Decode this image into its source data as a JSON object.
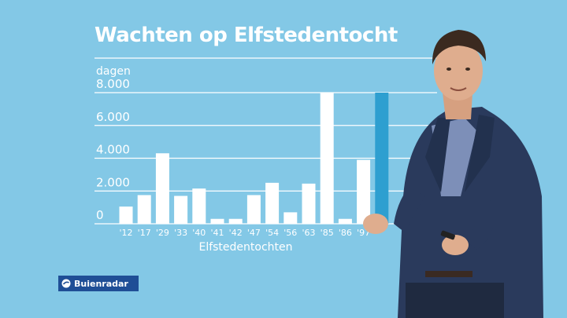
{
  "chart_data": {
    "type": "bar",
    "title": "Wachten op Elfstedentocht",
    "ylabel": "dagen",
    "xlabel": "Elfstedentochten",
    "ylim": [
      0,
      8000
    ],
    "yticks": [
      "0",
      "2.000",
      "4.000",
      "6.000",
      "8.000"
    ],
    "ytick_values": [
      0,
      2000,
      4000,
      6000,
      8000
    ],
    "grid": true,
    "categories": [
      "'12",
      "'17",
      "'29",
      "'33",
      "'40",
      "'41",
      "'42",
      "'47",
      "'54",
      "'56",
      "'63",
      "'85",
      "'86",
      "'97",
      ""
    ],
    "values": [
      1050,
      1750,
      4300,
      1700,
      2150,
      300,
      300,
      1750,
      2500,
      700,
      2450,
      8000,
      300,
      3900,
      8000
    ],
    "highlight_index": 14,
    "colors": {
      "bar": "#ffffff",
      "highlight": "#2e9fd0",
      "grid": "#ffffff",
      "background": "#83c8e6"
    }
  },
  "brand": {
    "name": "Buienradar",
    "color": "#1f4e96"
  }
}
